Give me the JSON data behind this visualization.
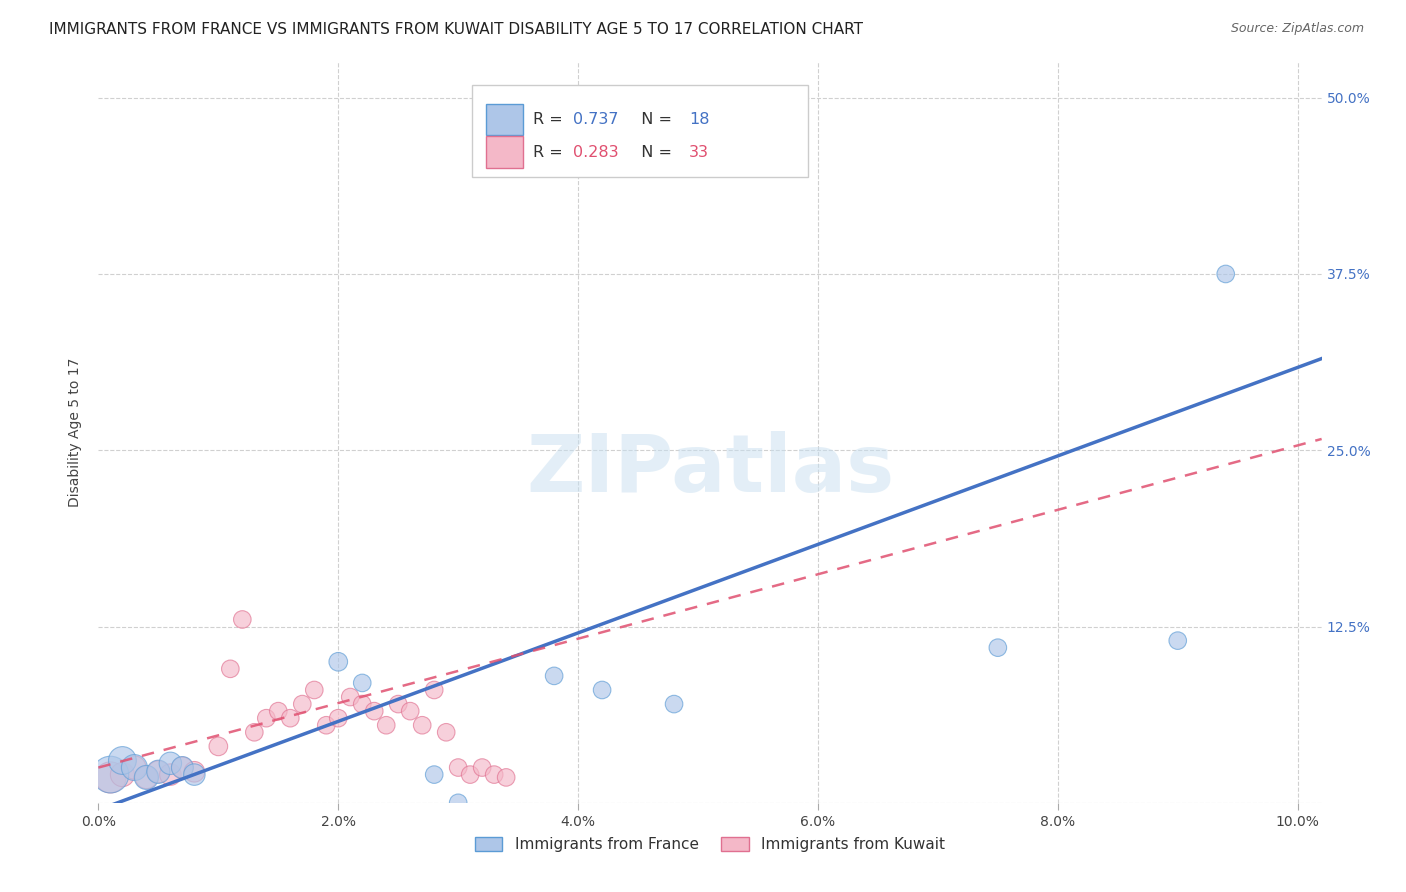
{
  "title": "IMMIGRANTS FROM FRANCE VS IMMIGRANTS FROM KUWAIT DISABILITY AGE 5 TO 17 CORRELATION CHART",
  "source": "Source: ZipAtlas.com",
  "ylabel": "Disability Age 5 to 17",
  "france_color": "#aec6e8",
  "france_edge_color": "#5b9bd5",
  "france_line_color": "#4472c4",
  "kuwait_color": "#f4b8c8",
  "kuwait_edge_color": "#e07090",
  "kuwait_line_color": "#e05070",
  "watermark": "ZIPatlas",
  "france_R": "0.737",
  "france_N": "18",
  "kuwait_R": "0.283",
  "kuwait_N": "33",
  "xlim": [
    0,
    0.102
  ],
  "ylim": [
    0,
    0.525
  ],
  "xticks": [
    0.0,
    0.02,
    0.04,
    0.06,
    0.08,
    0.1
  ],
  "yticks": [
    0.0,
    0.125,
    0.25,
    0.375,
    0.5
  ],
  "france_line_x": [
    0.0,
    0.102
  ],
  "france_line_y": [
    -0.005,
    0.315
  ],
  "kuwait_line_x": [
    0.0,
    0.102
  ],
  "kuwait_line_y": [
    0.025,
    0.258
  ],
  "france_x": [
    0.001,
    0.002,
    0.003,
    0.004,
    0.005,
    0.006,
    0.007,
    0.008,
    0.02,
    0.022,
    0.028,
    0.03,
    0.038,
    0.042,
    0.048,
    0.075,
    0.09,
    0.094
  ],
  "france_y": [
    0.02,
    0.03,
    0.025,
    0.018,
    0.022,
    0.028,
    0.025,
    0.02,
    0.1,
    0.085,
    0.02,
    0.0,
    0.09,
    0.08,
    0.07,
    0.11,
    0.115,
    0.375
  ],
  "france_sizes": [
    700,
    400,
    350,
    300,
    280,
    260,
    250,
    240,
    180,
    160,
    160,
    160,
    160,
    160,
    160,
    160,
    160,
    160
  ],
  "kuwait_x": [
    0.001,
    0.002,
    0.003,
    0.004,
    0.005,
    0.006,
    0.007,
    0.008,
    0.01,
    0.011,
    0.012,
    0.013,
    0.014,
    0.015,
    0.016,
    0.017,
    0.018,
    0.019,
    0.02,
    0.021,
    0.022,
    0.023,
    0.024,
    0.025,
    0.026,
    0.027,
    0.028,
    0.029,
    0.03,
    0.031,
    0.032,
    0.033,
    0.034
  ],
  "kuwait_y": [
    0.018,
    0.02,
    0.025,
    0.018,
    0.022,
    0.02,
    0.025,
    0.022,
    0.04,
    0.095,
    0.13,
    0.05,
    0.06,
    0.065,
    0.06,
    0.07,
    0.08,
    0.055,
    0.06,
    0.075,
    0.07,
    0.065,
    0.055,
    0.07,
    0.065,
    0.055,
    0.08,
    0.05,
    0.025,
    0.02,
    0.025,
    0.02,
    0.018
  ],
  "kuwait_sizes": [
    500,
    300,
    280,
    260,
    250,
    240,
    230,
    220,
    180,
    160,
    160,
    160,
    160,
    160,
    160,
    160,
    160,
    160,
    160,
    160,
    160,
    160,
    160,
    160,
    160,
    160,
    160,
    160,
    160,
    160,
    160,
    160,
    160
  ]
}
